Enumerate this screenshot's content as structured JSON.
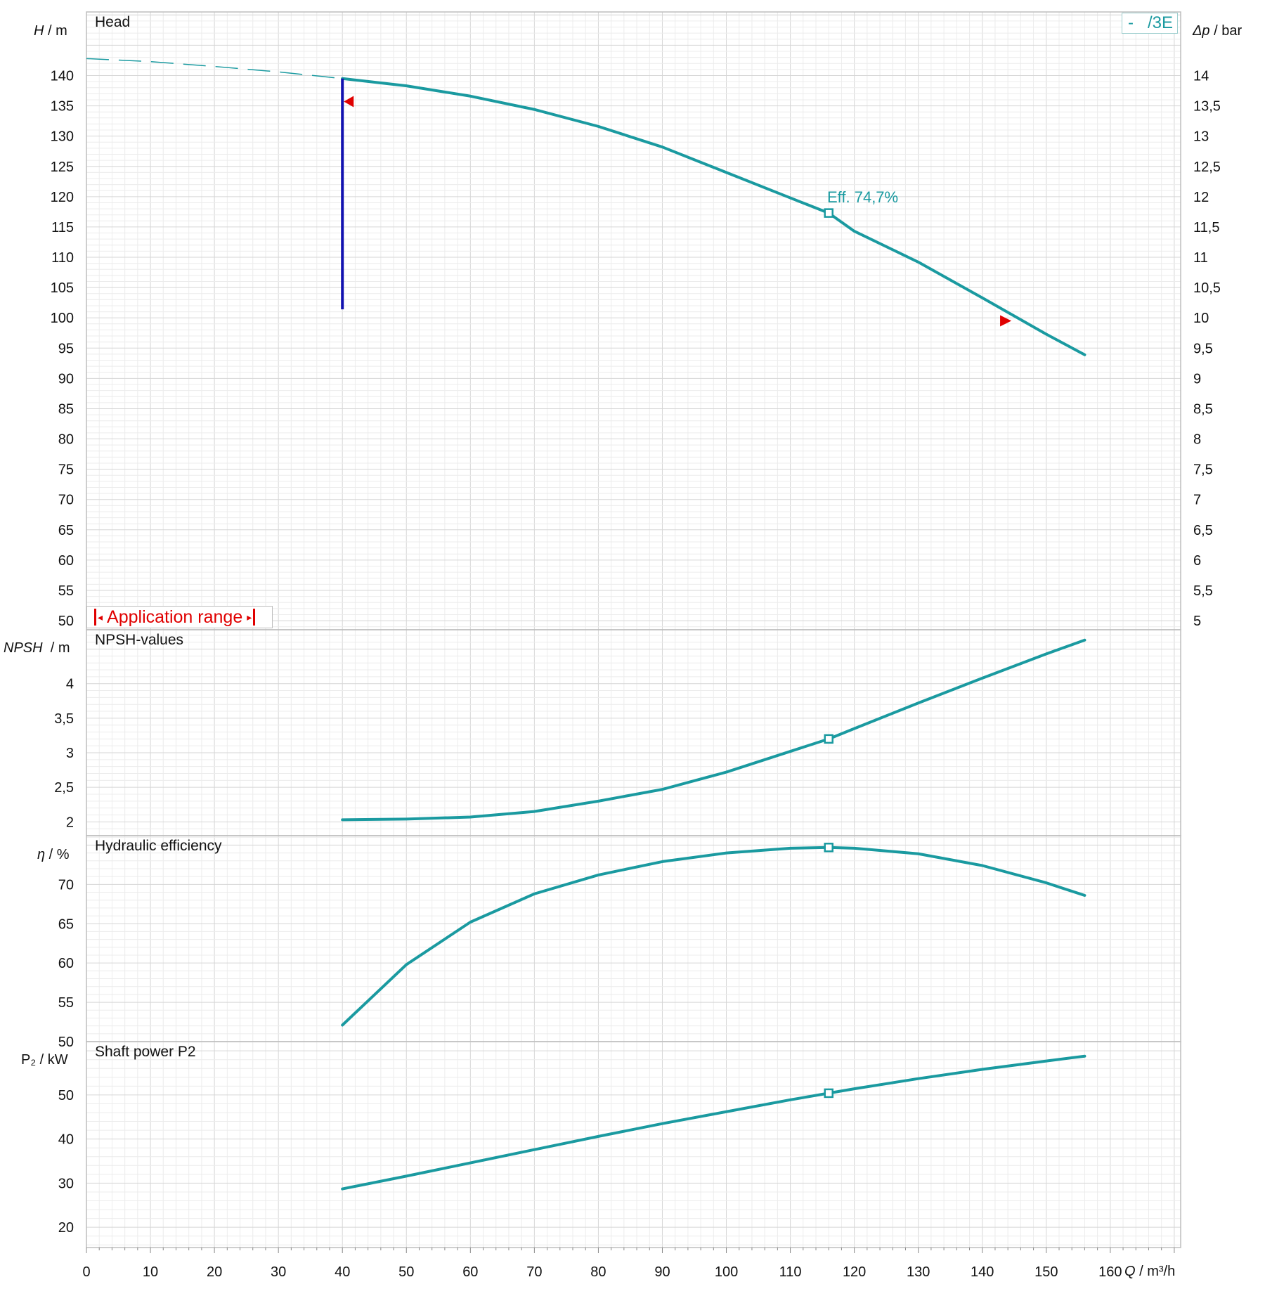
{
  "colors": {
    "curve": "#1a9aa0",
    "limit_line": "#1212b0",
    "range_marker": "#e00000",
    "grid_minor": "#ececec",
    "grid_major": "#d6d6d6",
    "frame": "#bdbdbd"
  },
  "legend": {
    "dash": "-",
    "name": "/3E"
  },
  "application_range": {
    "label": "Application range"
  },
  "chart_data": [
    {
      "type": "line",
      "title": "Head",
      "ylabel_symbol": "H",
      "ylabel_unit": "/ m",
      "y2label_symbol": "Δp",
      "y2label_unit": "/ bar",
      "xlim": [
        0,
        171
      ],
      "ylim": [
        48.5,
        150.5
      ],
      "y2lim": [
        4.85,
        15.05
      ],
      "yticks": [
        50,
        55,
        60,
        65,
        70,
        75,
        80,
        85,
        90,
        95,
        100,
        105,
        110,
        115,
        120,
        125,
        130,
        135,
        140
      ],
      "y2ticks": [
        "5",
        "5,5",
        "6",
        "6,5",
        "7",
        "7,5",
        "8",
        "8,5",
        "9",
        "9,5",
        "10",
        "10,5",
        "11",
        "11,5",
        "12",
        "12,5",
        "13",
        "13,5",
        "14"
      ],
      "series": [
        {
          "name": "/3E",
          "x": [
            40,
            50,
            60,
            70,
            80,
            90,
            100,
            110,
            116,
            120,
            130,
            140,
            150,
            156
          ],
          "y": [
            139.5,
            138.3,
            136.6,
            134.4,
            131.6,
            128.2,
            124.0,
            119.8,
            117.3,
            114.3,
            109.2,
            103.3,
            97.3,
            93.9
          ]
        }
      ],
      "extrapolation": {
        "x": [
          0,
          10,
          20,
          30,
          40
        ],
        "y": [
          142.8,
          142.3,
          141.5,
          140.6,
          139.5
        ]
      },
      "operating_point": {
        "x": 116,
        "y": 117.3,
        "label": "Eff.  74,7%"
      },
      "min_flow_line": {
        "x": 40,
        "y_from": 101.4,
        "y_to": 139.5
      },
      "range_markers": [
        {
          "x": 40,
          "y": 135.7,
          "direction": "left"
        },
        {
          "x": 143,
          "y": 99.5,
          "direction": "right"
        }
      ]
    },
    {
      "type": "line",
      "title": "NPSH-values",
      "ylabel_symbol": "NPSH",
      "ylabel_unit": "/ m",
      "ylim": [
        1.8,
        4.78
      ],
      "yticks": [
        2,
        2.5,
        3,
        3.5,
        4
      ],
      "ytick_labels": [
        "2",
        "2,5",
        "3",
        "3,5",
        "4"
      ],
      "series": [
        {
          "name": "/3E",
          "x": [
            40,
            50,
            60,
            70,
            80,
            90,
            100,
            110,
            116,
            120,
            130,
            140,
            150,
            156
          ],
          "y": [
            2.03,
            2.04,
            2.07,
            2.15,
            2.3,
            2.47,
            2.72,
            3.02,
            3.2,
            3.35,
            3.72,
            4.08,
            4.43,
            4.63
          ]
        }
      ],
      "operating_point": {
        "x": 116,
        "y": 3.2
      }
    },
    {
      "type": "line",
      "title": "Hydraulic efficiency",
      "ylabel_symbol": "η",
      "ylabel_unit": "/ %",
      "ylim": [
        50,
        76.2
      ],
      "yticks": [
        50,
        55,
        60,
        65,
        70
      ],
      "series": [
        {
          "name": "/3E",
          "x": [
            40,
            50,
            60,
            70,
            80,
            90,
            100,
            110,
            116,
            120,
            130,
            140,
            150,
            156
          ],
          "y": [
            52.1,
            59.8,
            65.2,
            68.8,
            71.2,
            72.9,
            74.0,
            74.6,
            74.7,
            74.6,
            73.9,
            72.4,
            70.2,
            68.6
          ]
        }
      ],
      "operating_point": {
        "x": 116,
        "y": 74.7
      }
    },
    {
      "type": "line",
      "title": "Shaft power P2",
      "ylabel_symbol": "P₂",
      "ylabel_unit": "/ kW",
      "ylim": [
        15.4,
        62.1
      ],
      "yticks": [
        20,
        30,
        40,
        50
      ],
      "xlabel_symbol": "Q",
      "xlabel_unit": "/ m³/h",
      "xticks": [
        0,
        10,
        20,
        30,
        40,
        50,
        60,
        70,
        80,
        90,
        100,
        110,
        120,
        130,
        140,
        150,
        160
      ],
      "series": [
        {
          "name": "/3E",
          "x": [
            40,
            50,
            60,
            70,
            80,
            90,
            100,
            110,
            116,
            120,
            130,
            140,
            150,
            156
          ],
          "y": [
            28.7,
            31.6,
            34.6,
            37.6,
            40.6,
            43.5,
            46.2,
            48.9,
            50.4,
            51.4,
            53.7,
            55.8,
            57.7,
            58.8
          ]
        }
      ],
      "operating_point": {
        "x": 116,
        "y": 50.4
      }
    }
  ]
}
